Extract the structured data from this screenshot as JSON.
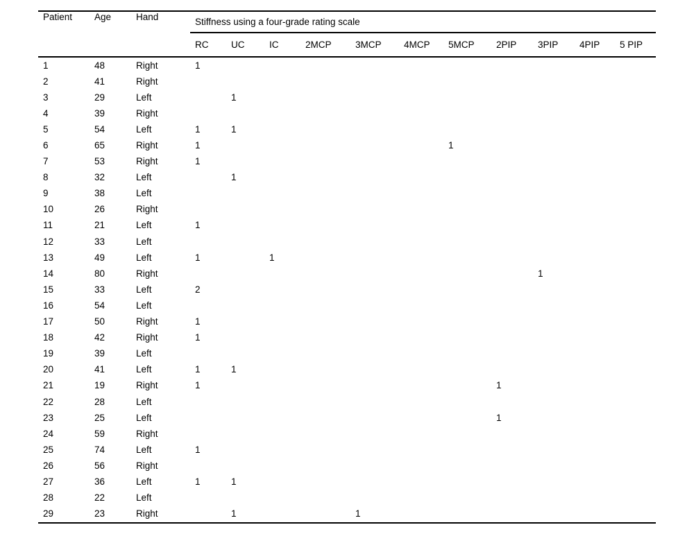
{
  "colors": {
    "background": "#ffffff",
    "text": "#000000",
    "rule": "#000000"
  },
  "table": {
    "group_header": "Stiffness using a four-grade rating scale",
    "columns": [
      "Patient",
      "Age",
      "Hand"
    ],
    "sub_columns": [
      "RC",
      "UC",
      "IC",
      "2MCP",
      "3MCP",
      "4MCP",
      "5MCP",
      "2PIP",
      "3PIP",
      "4PIP",
      "5 PIP"
    ],
    "rows": [
      {
        "patient": "1",
        "age": "48",
        "hand": "Right",
        "ratings": [
          "1",
          "",
          "",
          "",
          "",
          "",
          "",
          "",
          "",
          "",
          ""
        ]
      },
      {
        "patient": "2",
        "age": "41",
        "hand": "Right",
        "ratings": [
          "",
          "",
          "",
          "",
          "",
          "",
          "",
          "",
          "",
          "",
          ""
        ]
      },
      {
        "patient": "3",
        "age": "29",
        "hand": "Left",
        "ratings": [
          "",
          "1",
          "",
          "",
          "",
          "",
          "",
          "",
          "",
          "",
          ""
        ]
      },
      {
        "patient": "4",
        "age": "39",
        "hand": "Right",
        "ratings": [
          "",
          "",
          "",
          "",
          "",
          "",
          "",
          "",
          "",
          "",
          ""
        ]
      },
      {
        "patient": "5",
        "age": "54",
        "hand": "Left",
        "ratings": [
          "1",
          "1",
          "",
          "",
          "",
          "",
          "",
          "",
          "",
          "",
          ""
        ]
      },
      {
        "patient": "6",
        "age": "65",
        "hand": "Right",
        "ratings": [
          "1",
          "",
          "",
          "",
          "",
          "",
          "1",
          "",
          "",
          "",
          ""
        ]
      },
      {
        "patient": "7",
        "age": "53",
        "hand": "Right",
        "ratings": [
          "1",
          "",
          "",
          "",
          "",
          "",
          "",
          "",
          "",
          "",
          ""
        ]
      },
      {
        "patient": "8",
        "age": "32",
        "hand": "Left",
        "ratings": [
          "",
          "1",
          "",
          "",
          "",
          "",
          "",
          "",
          "",
          "",
          ""
        ]
      },
      {
        "patient": "9",
        "age": "38",
        "hand": "Left",
        "ratings": [
          "",
          "",
          "",
          "",
          "",
          "",
          "",
          "",
          "",
          "",
          ""
        ]
      },
      {
        "patient": "10",
        "age": "26",
        "hand": "Right",
        "ratings": [
          "",
          "",
          "",
          "",
          "",
          "",
          "",
          "",
          "",
          "",
          ""
        ]
      },
      {
        "patient": "11",
        "age": "21",
        "hand": "Left",
        "ratings": [
          "1",
          "",
          "",
          "",
          "",
          "",
          "",
          "",
          "",
          "",
          ""
        ]
      },
      {
        "patient": "12",
        "age": "33",
        "hand": "Left",
        "ratings": [
          "",
          "",
          "",
          "",
          "",
          "",
          "",
          "",
          "",
          "",
          ""
        ]
      },
      {
        "patient": "13",
        "age": "49",
        "hand": "Left",
        "ratings": [
          "1",
          "",
          "1",
          "",
          "",
          "",
          "",
          "",
          "",
          "",
          ""
        ]
      },
      {
        "patient": "14",
        "age": "80",
        "hand": "Right",
        "ratings": [
          "",
          "",
          "",
          "",
          "",
          "",
          "",
          "",
          "1",
          "",
          ""
        ]
      },
      {
        "patient": "15",
        "age": "33",
        "hand": "Left",
        "ratings": [
          "2",
          "",
          "",
          "",
          "",
          "",
          "",
          "",
          "",
          "",
          ""
        ]
      },
      {
        "patient": "16",
        "age": "54",
        "hand": "Left",
        "ratings": [
          "",
          "",
          "",
          "",
          "",
          "",
          "",
          "",
          "",
          "",
          ""
        ]
      },
      {
        "patient": "17",
        "age": "50",
        "hand": "Right",
        "ratings": [
          "1",
          "",
          "",
          "",
          "",
          "",
          "",
          "",
          "",
          "",
          ""
        ]
      },
      {
        "patient": "18",
        "age": "42",
        "hand": "Right",
        "ratings": [
          "1",
          "",
          "",
          "",
          "",
          "",
          "",
          "",
          "",
          "",
          ""
        ]
      },
      {
        "patient": "19",
        "age": "39",
        "hand": "Left",
        "ratings": [
          "",
          "",
          "",
          "",
          "",
          "",
          "",
          "",
          "",
          "",
          ""
        ]
      },
      {
        "patient": "20",
        "age": "41",
        "hand": "Left",
        "ratings": [
          "1",
          "1",
          "",
          "",
          "",
          "",
          "",
          "",
          "",
          "",
          ""
        ]
      },
      {
        "patient": "21",
        "age": "19",
        "hand": "Right",
        "ratings": [
          "1",
          "",
          "",
          "",
          "",
          "",
          "",
          "1",
          "",
          "",
          ""
        ]
      },
      {
        "patient": "22",
        "age": "28",
        "hand": "Left",
        "ratings": [
          "",
          "",
          "",
          "",
          "",
          "",
          "",
          "",
          "",
          "",
          ""
        ]
      },
      {
        "patient": "23",
        "age": "25",
        "hand": "Left",
        "ratings": [
          "",
          "",
          "",
          "",
          "",
          "",
          "",
          "1",
          "",
          "",
          ""
        ]
      },
      {
        "patient": "24",
        "age": "59",
        "hand": "Right",
        "ratings": [
          "",
          "",
          "",
          "",
          "",
          "",
          "",
          "",
          "",
          "",
          ""
        ]
      },
      {
        "patient": "25",
        "age": "74",
        "hand": "Left",
        "ratings": [
          "1",
          "",
          "",
          "",
          "",
          "",
          "",
          "",
          "",
          "",
          ""
        ]
      },
      {
        "patient": "26",
        "age": "56",
        "hand": "Right",
        "ratings": [
          "",
          "",
          "",
          "",
          "",
          "",
          "",
          "",
          "",
          "",
          ""
        ]
      },
      {
        "patient": "27",
        "age": "36",
        "hand": "Left",
        "ratings": [
          "1",
          "1",
          "",
          "",
          "",
          "",
          "",
          "",
          "",
          "",
          ""
        ]
      },
      {
        "patient": "28",
        "age": "22",
        "hand": "Left",
        "ratings": [
          "",
          "",
          "",
          "",
          "",
          "",
          "",
          "",
          "",
          "",
          ""
        ]
      },
      {
        "patient": "29",
        "age": "23",
        "hand": "Right",
        "ratings": [
          "",
          "1",
          "",
          "",
          "1",
          "",
          "",
          "",
          "",
          "",
          ""
        ]
      }
    ]
  }
}
